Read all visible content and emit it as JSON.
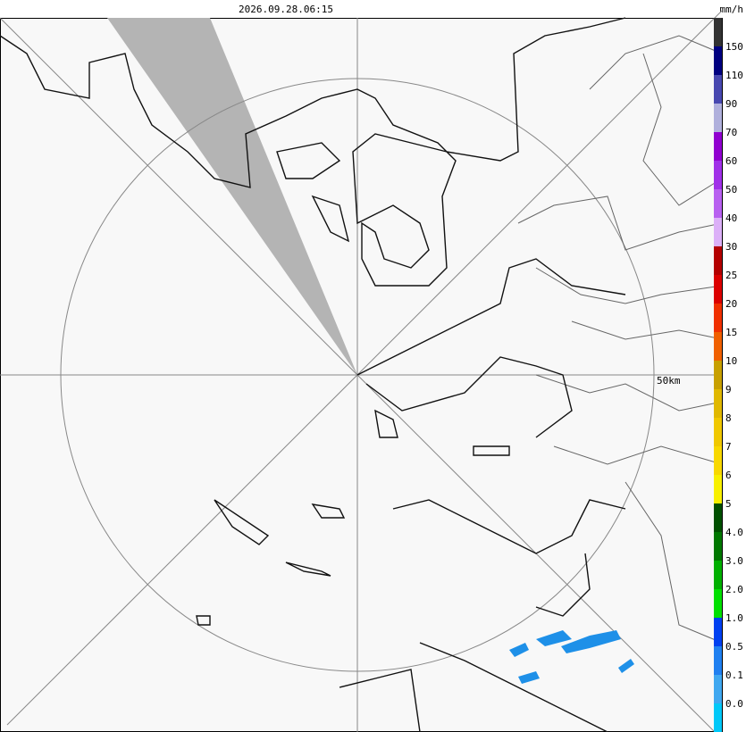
{
  "header": {
    "timestamp": "2026.09.28.06:15",
    "unit": "mm/h"
  },
  "map": {
    "range_label": "50km"
  },
  "legend": {
    "labels": [
      "150",
      "110",
      "90",
      "70",
      "60",
      "50",
      "40",
      "30",
      "25",
      "20",
      "15",
      "10",
      "9",
      "8",
      "7",
      "6",
      "5",
      "4.0",
      "3.0",
      "2.0",
      "1.0",
      "0.5",
      "0.1",
      "0.0"
    ],
    "colors": [
      "#333333",
      "#000080",
      "#4848b0",
      "#b0b0dc",
      "#9000d0",
      "#a030e8",
      "#b860f0",
      "#dcb0f8",
      "#b40000",
      "#dc0000",
      "#f03000",
      "#f06000",
      "#c8a000",
      "#e0b800",
      "#f0c800",
      "#f8d800",
      "#f8f000",
      "#005000",
      "#007800",
      "#00b000",
      "#00e000",
      "#0040f0",
      "#2080f0",
      "#40a8f0",
      "#00c8f8"
    ]
  }
}
